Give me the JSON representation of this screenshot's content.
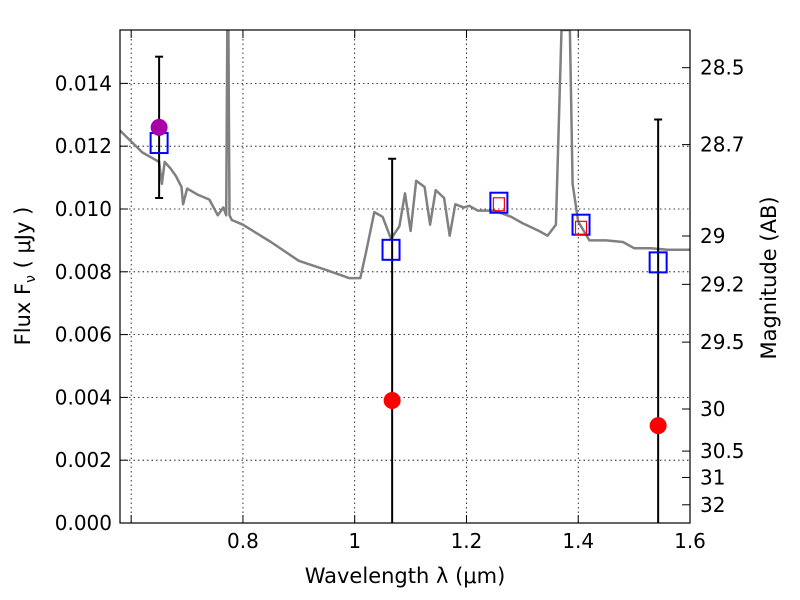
{
  "chart_data": {
    "type": "scatter",
    "xlabel": "Wavelength  λ (μm)",
    "ylabel": "Flux  F",
    "ylabel_sub": "ν",
    "ylabel_units": " ( μJy )",
    "y2label": "Magnitude (AB)",
    "xlim": [
      0.58,
      1.6
    ],
    "ylim": [
      0.0,
      0.0157
    ],
    "grid": true,
    "x_ticks": [
      {
        "value": 0.6,
        "label": ""
      },
      {
        "value": 0.8,
        "label": "0.8"
      },
      {
        "value": 1.0,
        "label": "1"
      },
      {
        "value": 1.2,
        "label": "1.2"
      },
      {
        "value": 1.4,
        "label": "1.4"
      },
      {
        "value": 1.6,
        "label": "1.6"
      }
    ],
    "x_grid": [
      0.6,
      0.8,
      1.0,
      1.2,
      1.4
    ],
    "y_ticks": [
      {
        "value": 0.0,
        "label": "0.000"
      },
      {
        "value": 0.002,
        "label": "0.002"
      },
      {
        "value": 0.004,
        "label": "0.004"
      },
      {
        "value": 0.006,
        "label": "0.006"
      },
      {
        "value": 0.008,
        "label": "0.008"
      },
      {
        "value": 0.01,
        "label": "0.010"
      },
      {
        "value": 0.012,
        "label": "0.012"
      },
      {
        "value": 0.014,
        "label": "0.014"
      }
    ],
    "y2_ticks": [
      {
        "mag": "28.5",
        "flux": 0.0145
      },
      {
        "mag": "28.7",
        "flux": 0.01205
      },
      {
        "mag": "29",
        "flux": 0.00914
      },
      {
        "mag": "29.2",
        "flux": 0.0076
      },
      {
        "mag": "29.5",
        "flux": 0.00576
      },
      {
        "mag": "30",
        "flux": 0.00363
      },
      {
        "mag": "30.5",
        "flux": 0.00229
      },
      {
        "mag": "31",
        "flux": 0.00145
      },
      {
        "mag": "32",
        "flux": 0.00058
      }
    ],
    "template_spectrum": {
      "color": "#808080",
      "x": [
        0.58,
        0.6,
        0.62,
        0.64,
        0.65,
        0.655,
        0.66,
        0.67,
        0.68,
        0.69,
        0.693,
        0.7,
        0.72,
        0.74,
        0.755,
        0.765,
        0.77,
        0.772,
        0.774,
        0.776,
        0.78,
        0.8,
        0.85,
        0.9,
        0.95,
        0.99,
        1.01,
        1.02,
        1.035,
        1.05,
        1.065,
        1.08,
        1.09,
        1.1,
        1.11,
        1.125,
        1.135,
        1.145,
        1.16,
        1.17,
        1.18,
        1.195,
        1.205,
        1.22,
        1.25,
        1.28,
        1.3,
        1.33,
        1.345,
        1.36,
        1.37,
        1.385,
        1.39,
        1.4,
        1.42,
        1.45,
        1.48,
        1.5,
        1.53,
        1.56,
        1.6
      ],
      "y": [
        0.0125,
        0.01215,
        0.0118,
        0.0116,
        0.0115,
        0.0108,
        0.0115,
        0.0113,
        0.01105,
        0.0107,
        0.01015,
        0.01065,
        0.01045,
        0.0103,
        0.0098,
        0.01005,
        0.0098,
        0.0157,
        0.0157,
        0.0098,
        0.00965,
        0.0095,
        0.00895,
        0.00835,
        0.00805,
        0.0078,
        0.0078,
        0.0086,
        0.0099,
        0.00975,
        0.00905,
        0.00945,
        0.0105,
        0.0093,
        0.0109,
        0.0107,
        0.0095,
        0.0106,
        0.01035,
        0.00915,
        0.01015,
        0.01005,
        0.0101,
        0.00995,
        0.00995,
        0.00975,
        0.00955,
        0.0093,
        0.00915,
        0.0095,
        0.0157,
        0.0157,
        0.0108,
        0.0096,
        0.009,
        0.009,
        0.00895,
        0.00875,
        0.00875,
        0.0087,
        0.0087
      ]
    },
    "model_fluxes": {
      "marker": "open-square",
      "color": "#0000ff",
      "points": [
        {
          "x": 0.65,
          "y": 0.0121
        },
        {
          "x": 1.065,
          "y": 0.0087
        },
        {
          "x": 1.258,
          "y": 0.0102
        },
        {
          "x": 1.405,
          "y": 0.0095
        },
        {
          "x": 1.543,
          "y": 0.0083
        }
      ]
    },
    "observed_fluxes": {
      "marker": "filled-circle",
      "points": [
        {
          "x": 0.65,
          "y": 0.0126,
          "yerr_low": 0.01035,
          "yerr_high": 0.01485,
          "color": "#aa00aa"
        },
        {
          "x": 1.067,
          "y": 0.0039,
          "yerr_low": 0.0,
          "yerr_high": 0.0116,
          "color": "#ff0000"
        },
        {
          "x": 1.543,
          "y": 0.0031,
          "yerr_low": 0.0,
          "yerr_high": 0.01285,
          "color": "#ff0000"
        }
      ]
    },
    "upper_limit_markers": {
      "marker": "small-open-square",
      "color": "#ff0000",
      "points": [
        {
          "x": 1.258,
          "y": 0.01015
        },
        {
          "x": 1.405,
          "y": 0.0094
        }
      ]
    }
  }
}
